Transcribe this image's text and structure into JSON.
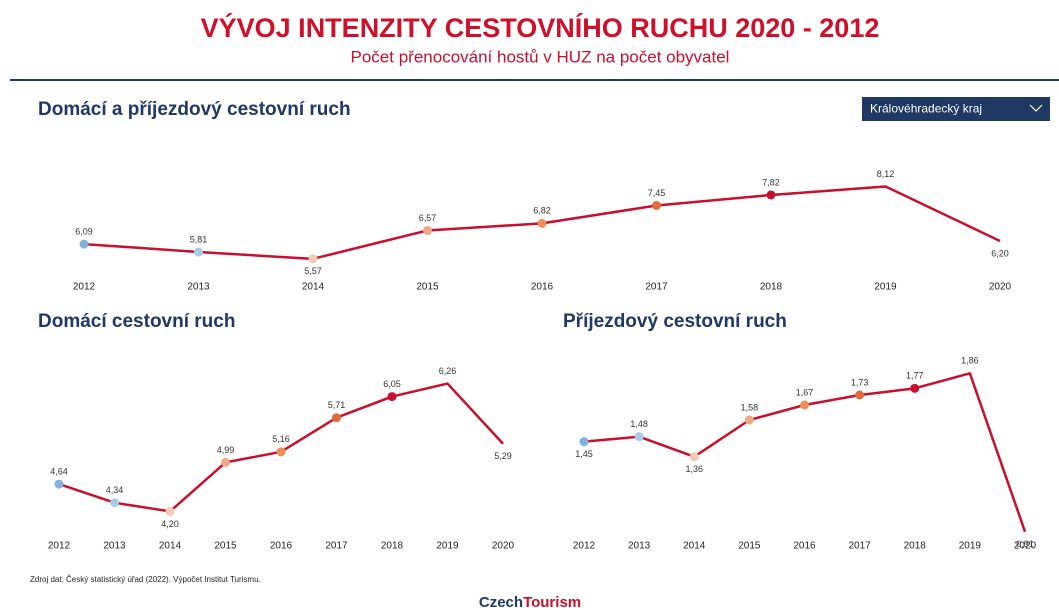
{
  "header": {
    "title": "VÝVOJ INTENZITY CESTOVNÍHO RUCHU 2020 - 2012",
    "subtitle": "Počet přenocování hostů v HUZ na počet obyvatel"
  },
  "filter": {
    "selected": "Královéhradecký kraj"
  },
  "chart_data": [
    {
      "type": "line",
      "title": "Domácí a příjezdový cestovní ruch",
      "categories": [
        "2012",
        "2013",
        "2014",
        "2015",
        "2016",
        "2017",
        "2018",
        "2019",
        "2020"
      ],
      "values": [
        6.09,
        5.81,
        5.57,
        6.57,
        6.82,
        7.45,
        7.82,
        8.12,
        6.2
      ],
      "value_labels": [
        "6,09",
        "5,81",
        "5,57",
        "6,57",
        "6,82",
        "7,45",
        "7,82",
        "8,12",
        "6,20"
      ],
      "color": "#c8102e",
      "point_colors": [
        "#7fb3de",
        "#a9cbe8",
        "#f6c9b4",
        "#f2a784",
        "#ec8f5a",
        "#e06a3a",
        "#c8102e",
        null,
        null
      ],
      "ylim": [
        5.0,
        8.7
      ]
    },
    {
      "type": "line",
      "title": "Domácí cestovní ruch",
      "categories": [
        "2012",
        "2013",
        "2014",
        "2015",
        "2016",
        "2017",
        "2018",
        "2019",
        "2020"
      ],
      "values": [
        4.64,
        4.34,
        4.2,
        4.99,
        5.16,
        5.71,
        6.05,
        6.26,
        5.29
      ],
      "value_labels": [
        "4,64",
        "4,34",
        "4,20",
        "4,99",
        "5,16",
        "5,71",
        "6,05",
        "6,26",
        "5,29"
      ],
      "color": "#c8102e",
      "point_colors": [
        "#7fb3de",
        "#a9cbe8",
        "#f6c9b4",
        "#f2a784",
        "#ec8f5a",
        "#e06a3a",
        "#c8102e",
        null,
        null
      ],
      "ylim": [
        3.82,
        6.72
      ]
    },
    {
      "type": "line",
      "title": "Příjezdový cestovní ruch",
      "categories": [
        "2012",
        "2013",
        "2014",
        "2015",
        "2016",
        "2017",
        "2018",
        "2019",
        "2020"
      ],
      "values": [
        1.45,
        1.48,
        1.36,
        1.58,
        1.67,
        1.73,
        1.77,
        1.86,
        0.91
      ],
      "value_labels": [
        "1,45",
        "1,48",
        "1,36",
        "1,58",
        "1,67",
        "1,73",
        "1,77",
        "1,86",
        "0,91"
      ],
      "color": "#c8102e",
      "point_colors": [
        "#7fb3de",
        "#a9cbe8",
        "#f6c9b4",
        "#f2a784",
        "#ec8f5a",
        "#e06a3a",
        "#c8102e",
        null,
        null
      ],
      "ylim": [
        0.86,
        1.97
      ]
    }
  ],
  "footer": {
    "source": "Zdroj dat: Český statistický úřad (2022). Výpočet Institut Turismu.",
    "logo_czech": "Czech",
    "logo_tourism": "Tourism"
  }
}
